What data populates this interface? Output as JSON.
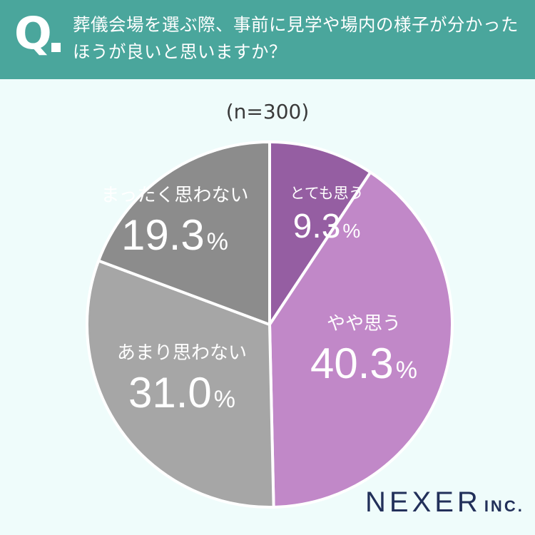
{
  "header": {
    "q_mark": "Q",
    "question": "葬儀会場を選ぶ際、事前に見学や場内の様子が分かったほうが良いと思いますか？"
  },
  "sample_size": "(n=300)",
  "logo": {
    "name": "NEXER",
    "suffix": "INC."
  },
  "colors": {
    "header_bg": "#4aa69c",
    "background": "#effcfb",
    "logo": "#22305a"
  },
  "chart_data": {
    "type": "pie",
    "unit": "%",
    "slices": [
      {
        "label": "とても思う",
        "value": 9.3,
        "value_text": "9.3",
        "color": "#955ea2"
      },
      {
        "label": "やや思う",
        "value": 40.3,
        "value_text": "40.3",
        "color": "#c188c8"
      },
      {
        "label": "あまり思わない",
        "value": 31.0,
        "value_text": "31.0",
        "color": "#a6a6a6"
      },
      {
        "label": "まったく思わない",
        "value": 19.3,
        "value_text": "19.3",
        "color": "#8c8c8c"
      }
    ]
  }
}
